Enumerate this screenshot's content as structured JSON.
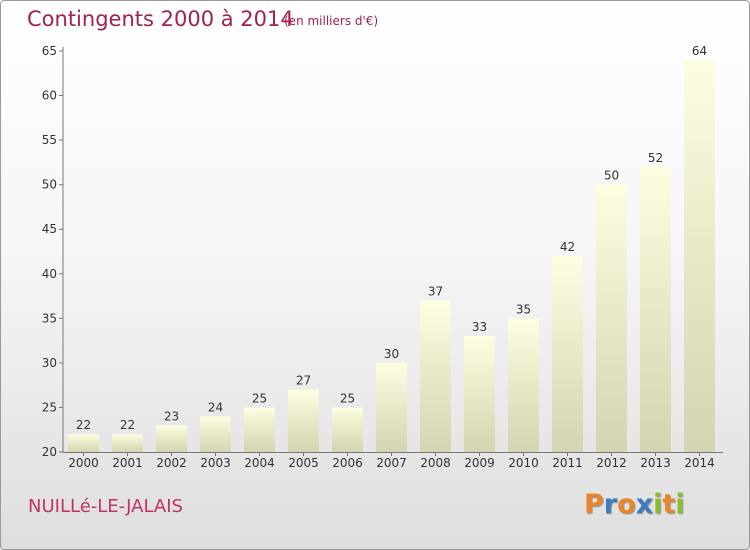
{
  "header": {
    "title": "Contingents 2000 à 2014",
    "subtitle": "(en milliers d'€)"
  },
  "footer": {
    "commune": "NUILLé-LE-JALAIS",
    "logo": "Proxiti"
  },
  "colors": {
    "title": "#a0224e",
    "bar_top": "#fdfde0",
    "bar_bottom": "#d4d4b2",
    "logo_letters": [
      "#e8842a",
      "#3a7cc0",
      "#e8842a",
      "#3a7cc0",
      "#8cbd2c",
      "#e8842a",
      "#8cbd2c"
    ]
  },
  "chart_data": {
    "type": "bar",
    "categories": [
      "2000",
      "2001",
      "2002",
      "2003",
      "2004",
      "2005",
      "2006",
      "2007",
      "2008",
      "2009",
      "2010",
      "2011",
      "2012",
      "2013",
      "2014"
    ],
    "values": [
      22,
      22,
      23,
      24,
      25,
      27,
      25,
      30,
      37,
      33,
      35,
      42,
      50,
      52,
      64
    ],
    "ylim": [
      20,
      65
    ],
    "yticks": [
      20,
      25,
      30,
      35,
      40,
      45,
      50,
      55,
      60,
      65
    ],
    "xlabel": "",
    "ylabel": "",
    "grid": false,
    "legend": "none"
  }
}
